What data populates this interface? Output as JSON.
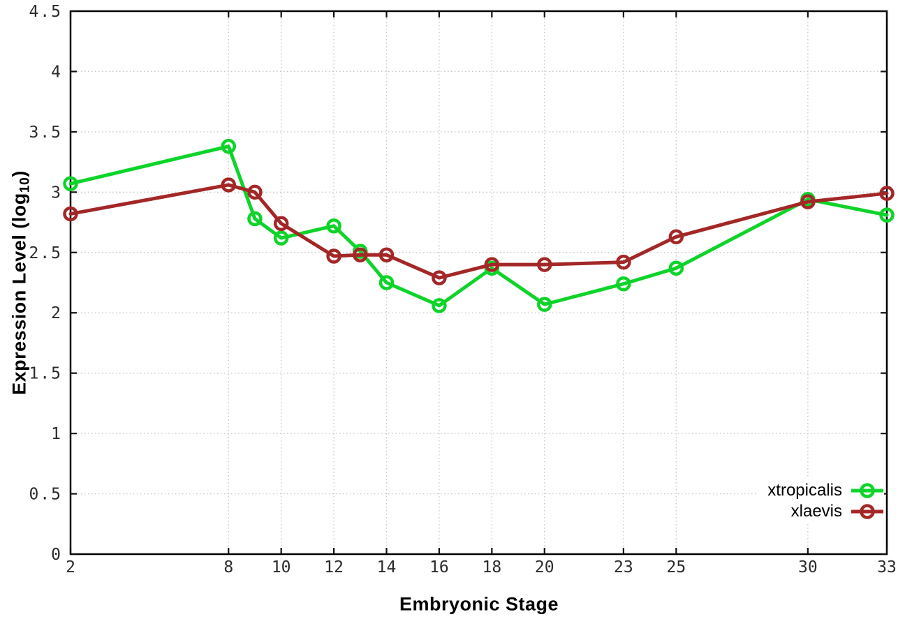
{
  "chart_data": {
    "type": "line",
    "title": "",
    "xlabel": "Embryonic Stage",
    "ylabel": "Expression Level (log10)",
    "ylabel_parts": {
      "prefix": "Expression Level (log",
      "subscript": "10",
      "suffix": ")"
    },
    "x": [
      2,
      8,
      9,
      10,
      12,
      13,
      14,
      16,
      18,
      20,
      23,
      25,
      30,
      33
    ],
    "series": [
      {
        "name": "xtropicalis",
        "color": "#0ed42a",
        "values": [
          3.07,
          3.38,
          2.78,
          2.62,
          2.72,
          2.51,
          2.25,
          2.06,
          2.37,
          2.07,
          2.24,
          2.37,
          2.94,
          2.81
        ]
      },
      {
        "name": "xlaevis",
        "color": "#a32727",
        "values": [
          2.82,
          3.06,
          3.0,
          2.74,
          2.47,
          2.48,
          2.48,
          2.29,
          2.4,
          2.4,
          2.42,
          2.63,
          2.92,
          2.99
        ]
      }
    ],
    "xlim": [
      2,
      33
    ],
    "ylim": [
      0,
      4.5
    ],
    "xticks": [
      2,
      8,
      10,
      12,
      14,
      16,
      18,
      20,
      23,
      25,
      30,
      33
    ],
    "xtick_labels": [
      "2",
      "8",
      "10",
      "12",
      "14",
      "16",
      "18",
      "20",
      "23",
      "25",
      "30",
      "33"
    ],
    "yticks": [
      0,
      0.5,
      1,
      1.5,
      2,
      2.5,
      3,
      3.5,
      4,
      4.5
    ],
    "ytick_labels": [
      "0",
      "0.5",
      "1",
      "1.5",
      "2",
      "2.5",
      "3",
      "3.5",
      "4",
      "4.5"
    ],
    "grid": true,
    "grid_style": "dotted",
    "legend_position": "inside-bottom-right",
    "marker": "open-circle",
    "colors": {
      "grid": "#c3c3c3",
      "border": "#000000",
      "tick_text": "#2b2b2b",
      "background": "#ffffff"
    }
  }
}
